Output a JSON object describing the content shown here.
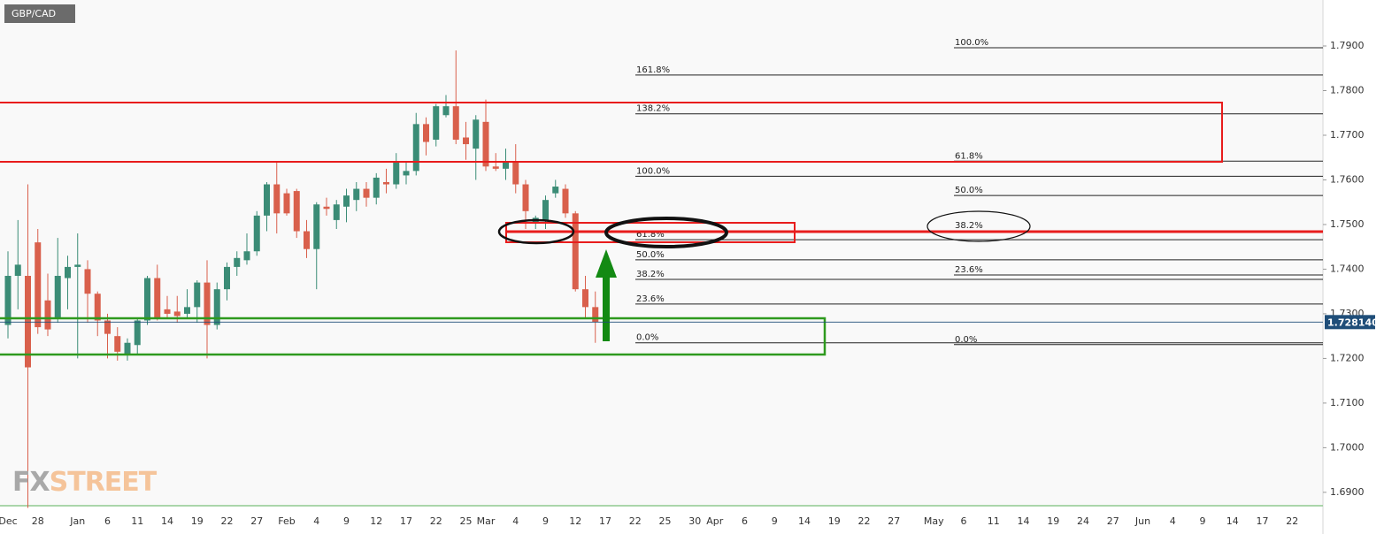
{
  "chart_data": {
    "type": "candlestick",
    "title": "GBP/CAD",
    "categories": [
      "Dec",
      null,
      null,
      "28",
      null,
      null,
      null,
      "Jan",
      null,
      null,
      "6",
      null,
      null,
      "11",
      null,
      null,
      "14",
      null,
      null,
      "19",
      null,
      null,
      "22",
      null,
      null,
      "27",
      null,
      null,
      "Feb",
      null,
      null,
      "4",
      null,
      null,
      "9",
      null,
      null,
      "12",
      null,
      null,
      "17",
      null,
      null,
      "22",
      null,
      null,
      "25",
      null,
      "Mar",
      null,
      null,
      "4",
      null,
      null,
      "9",
      null,
      null,
      "12",
      null,
      null,
      "17",
      null,
      null,
      "22",
      null,
      null,
      "25",
      null,
      null,
      "30",
      null,
      "Apr",
      null,
      null,
      "6",
      null,
      null,
      "9",
      null,
      null,
      "14",
      null,
      null,
      "19",
      null,
      null,
      "22",
      null,
      null,
      "27",
      null,
      null,
      null,
      "May",
      null,
      null,
      "6",
      null,
      null,
      "11",
      null,
      null,
      "14",
      null,
      null,
      "19",
      null,
      null,
      "24",
      null,
      null,
      "27",
      null,
      null,
      "Jun",
      null,
      null,
      "4",
      null,
      null,
      "9",
      null,
      null,
      "14",
      null,
      null,
      "17",
      null,
      null,
      "22",
      null,
      null,
      null
    ],
    "open": [
      1.7275,
      1.7385,
      1.7385,
      1.746,
      1.733,
      1.729,
      1.738,
      1.7405,
      1.74,
      1.7345,
      1.7285,
      1.725,
      1.721,
      1.723,
      1.7285,
      1.738,
      1.731,
      1.7305,
      1.73,
      1.7315,
      1.737,
      1.7275,
      1.7355,
      1.7405,
      1.742,
      1.744,
      1.752,
      1.759,
      1.757,
      1.7575,
      1.7485,
      1.7445,
      1.754,
      1.751,
      1.754,
      1.7555,
      1.758,
      1.756,
      1.7595,
      1.759,
      1.761,
      1.762,
      1.7725,
      1.769,
      1.7745,
      1.7765,
      1.7695,
      1.767,
      1.773,
      1.763,
      1.7625,
      1.764,
      1.759,
      1.7505,
      1.751,
      1.757,
      1.758,
      1.7525,
      1.7355,
      1.7315,
      null,
      null,
      null,
      null,
      null,
      null,
      null,
      null,
      null,
      null,
      null,
      null,
      null,
      null,
      null,
      null,
      null,
      null,
      null,
      null,
      null,
      null,
      null,
      null,
      null,
      null,
      null,
      null,
      null,
      null,
      null,
      null,
      null,
      null,
      null,
      null,
      null,
      null,
      null,
      null,
      null,
      null,
      null,
      null,
      null,
      null,
      null,
      null,
      null,
      null,
      null,
      null,
      null,
      null,
      null,
      null,
      null,
      null,
      null,
      null,
      null,
      null,
      null,
      null,
      null,
      null,
      null,
      null,
      null,
      null,
      null,
      null,
      null
    ],
    "high": [
      1.744,
      1.751,
      1.759,
      1.749,
      1.739,
      1.747,
      1.743,
      1.748,
      1.742,
      1.735,
      1.73,
      1.727,
      1.7245,
      1.729,
      1.7385,
      1.741,
      1.734,
      1.734,
      1.7355,
      1.7375,
      1.742,
      1.737,
      1.7415,
      1.744,
      1.748,
      1.753,
      1.7595,
      1.764,
      1.758,
      1.758,
      1.751,
      1.755,
      1.756,
      1.7555,
      1.758,
      1.7595,
      1.7595,
      1.7615,
      1.7625,
      1.766,
      1.764,
      1.775,
      1.774,
      1.777,
      1.779,
      1.789,
      1.773,
      1.7745,
      1.778,
      1.766,
      1.767,
      1.768,
      1.76,
      1.752,
      1.7565,
      1.76,
      1.759,
      1.753,
      1.7385,
      1.735,
      null,
      null,
      null,
      null,
      null,
      null,
      null,
      null,
      null,
      null,
      null,
      null,
      null,
      null,
      null,
      null,
      null,
      null,
      null,
      null,
      null,
      null,
      null,
      null,
      null,
      null,
      null,
      null,
      null,
      null,
      null,
      null,
      null,
      null,
      null,
      null,
      null,
      null,
      null,
      null,
      null,
      null,
      null,
      null,
      null,
      null,
      null,
      null,
      null,
      null,
      null,
      null,
      null,
      null,
      null,
      null,
      null,
      null,
      null,
      null,
      null,
      null,
      null,
      null,
      null,
      null,
      null,
      null,
      null,
      null,
      null,
      null,
      null
    ],
    "low": [
      1.7245,
      1.731,
      1.6865,
      1.7255,
      1.725,
      1.728,
      1.731,
      1.72,
      1.728,
      1.725,
      1.72,
      1.7195,
      1.7195,
      1.721,
      1.7275,
      1.7285,
      1.729,
      1.728,
      1.729,
      1.728,
      1.72,
      1.7265,
      1.733,
      1.7385,
      1.741,
      1.743,
      1.7485,
      1.748,
      1.752,
      1.747,
      1.7425,
      1.7355,
      1.752,
      1.749,
      1.7505,
      1.753,
      1.754,
      1.7545,
      1.757,
      1.758,
      1.759,
      1.761,
      1.7655,
      1.7675,
      1.774,
      1.768,
      1.7645,
      1.76,
      1.762,
      1.762,
      1.76,
      1.757,
      1.749,
      1.749,
      1.749,
      1.756,
      1.7515,
      1.735,
      1.729,
      1.7235,
      null,
      null,
      null,
      null,
      null,
      null,
      null,
      null,
      null,
      null,
      null,
      null,
      null,
      null,
      null,
      null,
      null,
      null,
      null,
      null,
      null,
      null,
      null,
      null,
      null,
      null,
      null,
      null,
      null,
      null,
      null,
      null,
      null,
      null,
      null,
      null,
      null,
      null,
      null,
      null,
      null,
      null,
      null,
      null,
      null,
      null,
      null,
      null,
      null,
      null,
      null,
      null,
      null,
      null,
      null,
      null,
      null,
      null,
      null,
      null,
      null,
      null,
      null,
      null,
      null,
      null,
      null,
      null,
      null,
      null,
      null,
      null,
      null
    ],
    "close": [
      1.7385,
      1.741,
      1.718,
      1.727,
      1.7265,
      1.7385,
      1.7405,
      1.741,
      1.7345,
      1.7285,
      1.7255,
      1.7215,
      1.7235,
      1.7285,
      1.738,
      1.729,
      1.73,
      1.7295,
      1.7315,
      1.737,
      1.7275,
      1.7355,
      1.7405,
      1.7425,
      1.744,
      1.752,
      1.759,
      1.7525,
      1.7525,
      1.7485,
      1.7445,
      1.7545,
      1.7535,
      1.7545,
      1.7565,
      1.758,
      1.756,
      1.7605,
      1.759,
      1.764,
      1.762,
      1.7725,
      1.7685,
      1.7765,
      1.7765,
      1.769,
      1.768,
      1.7735,
      1.763,
      1.7625,
      1.764,
      1.759,
      1.753,
      1.7515,
      1.7555,
      1.7585,
      1.7525,
      1.7355,
      1.7315,
      1.72814,
      null,
      null,
      null,
      null,
      null,
      null,
      null,
      null,
      null,
      null,
      null,
      null,
      null,
      null,
      null,
      null,
      null,
      null,
      null,
      null,
      null,
      null,
      null,
      null,
      null,
      null,
      null,
      null,
      null,
      null,
      null,
      null,
      null,
      null,
      null,
      null,
      null,
      null,
      null,
      null,
      null,
      null,
      null,
      null,
      null,
      null,
      null,
      null,
      null,
      null,
      null,
      null,
      null,
      null,
      null,
      null,
      null,
      null,
      null,
      null,
      null,
      null,
      null,
      null,
      null,
      null,
      null,
      null,
      null,
      null,
      null,
      null,
      null
    ],
    "up_color": "#3b8c76",
    "down_color": "#d9604c",
    "ylim": [
      1.6874,
      1.8003
    ],
    "yticks": [
      {
        "value": 1.69,
        "label": "1.6900"
      },
      {
        "value": 1.7,
        "label": "1.7000"
      },
      {
        "value": 1.71,
        "label": "1.7100"
      },
      {
        "value": 1.72,
        "label": "1.7200"
      },
      {
        "value": 1.73,
        "label": "1.7300"
      },
      {
        "value": 1.74,
        "label": "1.7400"
      },
      {
        "value": 1.75,
        "label": "1.7500"
      },
      {
        "value": 1.76,
        "label": "1.7600"
      },
      {
        "value": 1.77,
        "label": "1.7700"
      },
      {
        "value": 1.78,
        "label": "1.7800"
      },
      {
        "value": 1.79,
        "label": "1.7900"
      }
    ],
    "last_price": {
      "value": 1.72814,
      "label": "1.728140"
    },
    "fib_sets": [
      {
        "levels": [
          {
            "label": "161.8%",
            "value": 1.7835
          },
          {
            "label": "138.2%",
            "value": 1.7748
          },
          {
            "label": "100.0%",
            "value": 1.7608
          },
          {
            "label": "61.8%",
            "value": 1.7466
          },
          {
            "label": "50.0%",
            "value": 1.7421
          },
          {
            "label": "38.2%",
            "value": 1.7377
          },
          {
            "label": "23.6%",
            "value": 1.7322
          },
          {
            "label": "0.0%",
            "value": 1.7235
          }
        ]
      },
      {
        "levels": [
          {
            "label": "100.0%",
            "value": 1.7896
          },
          {
            "label": "61.8%",
            "value": 1.7642
          },
          {
            "label": "50.0%",
            "value": 1.7565
          },
          {
            "label": "38.2%",
            "value": 1.7486
          },
          {
            "label": "23.6%",
            "value": 1.7387
          },
          {
            "label": "0.0%",
            "value": 1.7231
          }
        ]
      }
    ],
    "logo": [
      "FX",
      "STREET"
    ]
  }
}
